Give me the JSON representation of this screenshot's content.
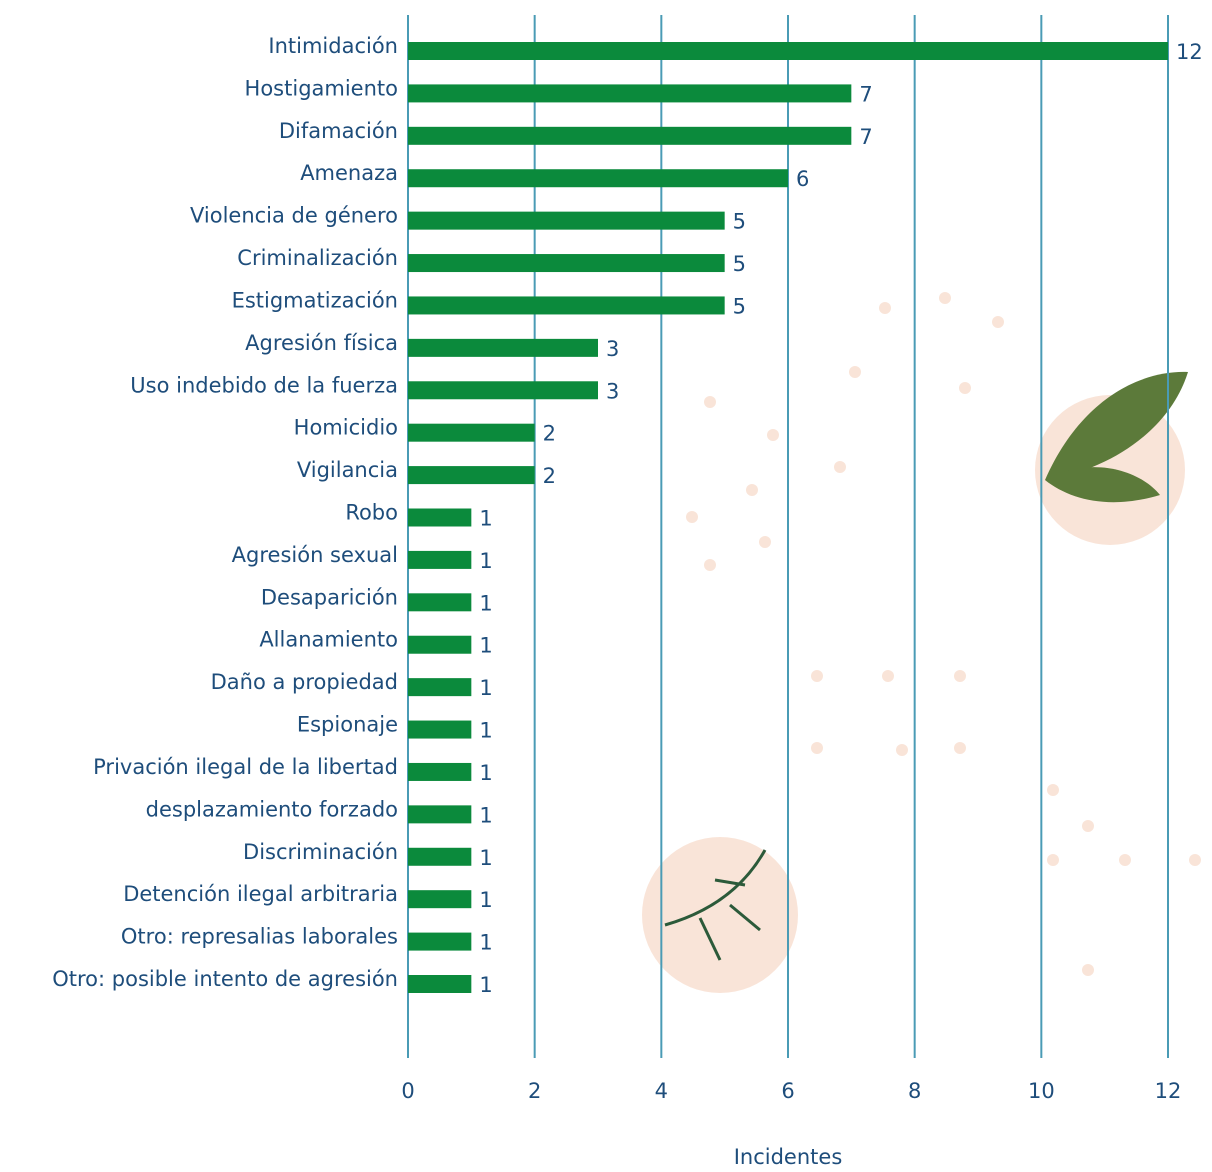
{
  "chart_data": {
    "type": "bar",
    "orientation": "horizontal",
    "xlabel": "Incidentes",
    "categories": [
      "Intimidación",
      "Hostigamiento",
      "Difamación",
      "Amenaza",
      "Violencia de género",
      "Criminalización",
      "Estigmatización",
      "Agresión física",
      "Uso indebido de la fuerza",
      "Homicidio",
      "Vigilancia",
      "Robo",
      "Agresión sexual",
      "Desaparición",
      "Allanamiento",
      "Daño a propiedad",
      "Espionaje",
      "Privación ilegal de la libertad",
      "desplazamiento forzado",
      "Discriminación",
      "Detención ilegal arbitraria",
      "Otro: represalias laborales",
      "Otro: posible intento de agresión"
    ],
    "values": [
      12,
      7,
      7,
      6,
      5,
      5,
      5,
      3,
      3,
      2,
      2,
      1,
      1,
      1,
      1,
      1,
      1,
      1,
      1,
      1,
      1,
      1,
      1
    ],
    "color": "#0b8a3c",
    "xlim": [
      0,
      12
    ],
    "xticks": [
      0,
      2,
      4,
      6,
      8,
      10,
      12
    ],
    "grid": true,
    "grid_color": "#4a9bb5"
  }
}
